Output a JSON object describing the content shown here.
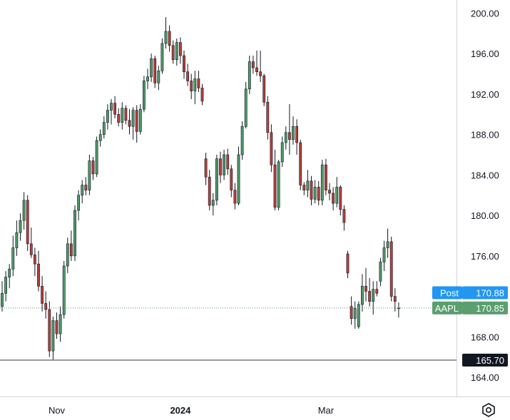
{
  "chart_data": {
    "type": "candlestick",
    "symbol": "AAPL",
    "y_ticks": [
      200,
      196,
      192,
      188,
      184,
      180,
      176,
      172,
      168,
      164
    ],
    "y_tick_labels": [
      "200.00",
      "196.00",
      "192.00",
      "188.00",
      "184.00",
      "180.00",
      "176.00",
      "",
      "168.00",
      "164.00"
    ],
    "ylim": [
      162.1,
      201.3
    ],
    "x_ticks": [
      {
        "label": "Nov",
        "index": 15,
        "bold": false
      },
      {
        "label": "2024",
        "index": 49,
        "bold": true
      },
      {
        "label": "Mar",
        "index": 89,
        "bold": false
      }
    ],
    "colors": {
      "up": "#4e9a69",
      "down": "#b5403b",
      "post_tag": "#2196f3",
      "last_tag": "#5b9e6f",
      "support_line": "#787b86",
      "price_line": "#4e9a69"
    },
    "support_level": {
      "value": 165.7,
      "label": "165.70"
    },
    "post_price": {
      "name": "Post",
      "value": 170.88,
      "label": "170.88"
    },
    "last_price": {
      "name": "AAPL",
      "value": 170.85,
      "label": "170.85"
    },
    "candles": [
      [
        171.0,
        173.5,
        170.5,
        172.3
      ],
      [
        172.3,
        174.5,
        171.5,
        173.9
      ],
      [
        173.9,
        175.2,
        172.8,
        174.7
      ],
      [
        174.7,
        178.0,
        174.0,
        176.8
      ],
      [
        176.8,
        179.5,
        176.0,
        178.3
      ],
      [
        178.3,
        180.2,
        177.5,
        179.5
      ],
      [
        179.5,
        182.3,
        178.6,
        181.5
      ],
      [
        181.5,
        182.0,
        176.5,
        177.2
      ],
      [
        177.2,
        178.8,
        175.8,
        176.1
      ],
      [
        176.1,
        176.8,
        174.0,
        175.2
      ],
      [
        175.2,
        176.5,
        172.5,
        173.0
      ],
      [
        173.0,
        174.0,
        170.5,
        171.3
      ],
      [
        171.3,
        172.5,
        169.8,
        170.7
      ],
      [
        170.7,
        171.5,
        166.0,
        166.6
      ],
      [
        166.6,
        170.0,
        165.7,
        169.6
      ],
      [
        169.6,
        170.4,
        167.8,
        168.3
      ],
      [
        168.3,
        171.0,
        167.5,
        170.2
      ],
      [
        170.2,
        175.5,
        169.8,
        175.0
      ],
      [
        175.0,
        177.8,
        174.3,
        177.2
      ],
      [
        177.2,
        178.5,
        175.5,
        176.0
      ],
      [
        176.0,
        181.0,
        175.5,
        180.5
      ],
      [
        180.5,
        182.5,
        179.5,
        182.0
      ],
      [
        182.0,
        183.5,
        181.2,
        183.0
      ],
      [
        183.0,
        183.8,
        182.0,
        182.5
      ],
      [
        182.5,
        186.0,
        182.0,
        185.4
      ],
      [
        185.4,
        185.8,
        183.5,
        184.1
      ],
      [
        184.1,
        187.8,
        183.8,
        187.4
      ],
      [
        187.4,
        188.5,
        186.8,
        188.0
      ],
      [
        188.0,
        189.8,
        187.6,
        189.2
      ],
      [
        189.2,
        191.0,
        188.5,
        190.4
      ],
      [
        190.4,
        191.5,
        189.0,
        191.1
      ],
      [
        191.1,
        191.8,
        189.6,
        190.0
      ],
      [
        190.0,
        190.6,
        188.8,
        189.2
      ],
      [
        189.2,
        191.2,
        188.5,
        190.6
      ],
      [
        190.6,
        190.9,
        189.0,
        189.4
      ],
      [
        189.4,
        190.5,
        188.0,
        188.8
      ],
      [
        188.8,
        190.7,
        187.5,
        190.4
      ],
      [
        190.4,
        190.9,
        187.2,
        188.3
      ],
      [
        188.3,
        191.0,
        188.0,
        190.5
      ],
      [
        190.5,
        193.8,
        190.2,
        193.3
      ],
      [
        193.3,
        194.5,
        192.5,
        193.7
      ],
      [
        193.7,
        196.0,
        193.2,
        195.5
      ],
      [
        195.5,
        195.8,
        192.6,
        193.1
      ],
      [
        193.1,
        194.8,
        192.4,
        194.3
      ],
      [
        194.3,
        197.5,
        194.0,
        197.0
      ],
      [
        197.0,
        199.6,
        196.5,
        198.2
      ],
      [
        198.2,
        198.8,
        196.2,
        196.8
      ],
      [
        196.8,
        197.3,
        195.0,
        195.4
      ],
      [
        195.4,
        197.5,
        194.8,
        197.1
      ],
      [
        197.1,
        197.6,
        195.0,
        195.8
      ],
      [
        195.8,
        196.3,
        193.5,
        194.2
      ],
      [
        194.2,
        195.0,
        192.8,
        193.3
      ],
      [
        193.3,
        194.0,
        191.5,
        192.3
      ],
      [
        192.3,
        194.3,
        191.0,
        193.5
      ],
      [
        193.5,
        194.3,
        192.2,
        192.6
      ],
      [
        192.6,
        193.0,
        190.9,
        191.3
      ],
      [
        185.6,
        186.2,
        183.0,
        183.8
      ],
      [
        183.8,
        184.5,
        180.5,
        181.0
      ],
      [
        181.0,
        182.2,
        180.0,
        181.5
      ],
      [
        181.5,
        186.0,
        181.0,
        185.6
      ],
      [
        185.6,
        186.3,
        183.2,
        184.0
      ],
      [
        184.0,
        186.5,
        183.5,
        186.0
      ],
      [
        186.0,
        186.6,
        184.0,
        184.6
      ],
      [
        184.6,
        185.0,
        181.8,
        182.5
      ],
      [
        182.5,
        183.2,
        180.6,
        181.2
      ],
      [
        181.2,
        186.8,
        181.0,
        186.0
      ],
      [
        186.0,
        189.3,
        185.5,
        188.8
      ],
      [
        188.8,
        193.2,
        188.6,
        192.5
      ],
      [
        192.5,
        195.8,
        192.0,
        195.2
      ],
      [
        195.2,
        195.8,
        194.0,
        194.6
      ],
      [
        194.6,
        196.3,
        193.8,
        194.2
      ],
      [
        194.2,
        196.3,
        193.2,
        193.8
      ],
      [
        193.8,
        194.0,
        190.8,
        191.2
      ],
      [
        191.2,
        191.8,
        187.5,
        188.2
      ],
      [
        188.2,
        189.0,
        184.3,
        185.0
      ],
      [
        185.0,
        186.5,
        180.5,
        180.8
      ],
      [
        180.8,
        185.5,
        180.5,
        185.3
      ],
      [
        185.3,
        187.8,
        184.8,
        187.2
      ],
      [
        187.2,
        188.8,
        186.5,
        188.2
      ],
      [
        188.2,
        191.0,
        186.0,
        187.5
      ],
      [
        187.5,
        189.8,
        187.0,
        188.8
      ],
      [
        188.8,
        189.5,
        186.0,
        187.2
      ],
      [
        187.2,
        187.5,
        182.5,
        183.0
      ],
      [
        183.0,
        183.3,
        182.0,
        182.5
      ],
      [
        182.5,
        184.5,
        181.8,
        183.4
      ],
      [
        183.4,
        183.9,
        181.0,
        181.6
      ],
      [
        181.6,
        183.5,
        181.2,
        182.8
      ],
      [
        182.8,
        183.4,
        181.0,
        181.5
      ],
      [
        181.5,
        185.5,
        181.0,
        185.0
      ],
      [
        185.0,
        185.6,
        182.0,
        182.5
      ],
      [
        182.5,
        183.2,
        181.5,
        182.2
      ],
      [
        182.2,
        182.8,
        180.5,
        181.2
      ],
      [
        181.2,
        183.8,
        180.8,
        182.8
      ],
      [
        182.8,
        183.0,
        180.0,
        180.6
      ],
      [
        180.6,
        181.0,
        178.5,
        179.3
      ],
      [
        176.2,
        176.5,
        173.8,
        174.3
      ],
      [
        171.0,
        172.0,
        169.2,
        169.8
      ],
      [
        169.8,
        171.5,
        168.8,
        170.8
      ],
      [
        169.0,
        171.5,
        168.8,
        171.2
      ],
      [
        171.2,
        174.2,
        170.5,
        173.0
      ],
      [
        173.0,
        174.8,
        171.5,
        172.5
      ],
      [
        172.5,
        173.8,
        171.0,
        171.5
      ],
      [
        171.5,
        173.5,
        170.2,
        172.7
      ],
      [
        172.7,
        173.5,
        172.0,
        172.3
      ],
      [
        173.5,
        175.8,
        173.0,
        175.4
      ],
      [
        175.4,
        177.5,
        174.5,
        176.8
      ],
      [
        176.8,
        178.7,
        175.8,
        177.4
      ],
      [
        177.4,
        177.9,
        171.5,
        172.0
      ],
      [
        172.0,
        172.8,
        170.5,
        171.5
      ],
      [
        170.8,
        171.4,
        169.9,
        170.85
      ]
    ]
  },
  "ui": {
    "settings_icon": "hexagon-settings-icon"
  }
}
